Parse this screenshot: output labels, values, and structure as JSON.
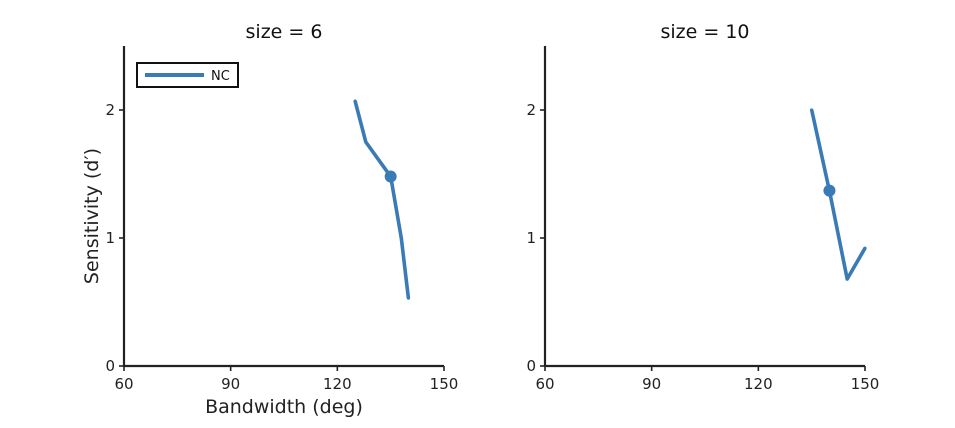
{
  "chart_data": [
    {
      "type": "line",
      "title": "size = 6",
      "xlabel": "Bandwidth (deg)",
      "ylabel": "Sensitivity (d′)",
      "xlim": [
        60,
        150
      ],
      "ylim": [
        0,
        2.5
      ],
      "xticks": [
        "60",
        "90",
        "120",
        "150"
      ],
      "yticks": [
        "0",
        "1",
        "2"
      ],
      "grid": false,
      "legend": {
        "placement": "top-left",
        "entries": [
          "NC"
        ]
      },
      "series": [
        {
          "name": "NC",
          "color": "#3a7ab5",
          "x": [
            125,
            128,
            135,
            138,
            140
          ],
          "y": [
            2.07,
            1.75,
            1.48,
            1.0,
            0.53
          ],
          "marker": {
            "x": 135,
            "y": 1.48
          }
        }
      ]
    },
    {
      "type": "line",
      "title": "size = 10",
      "xlabel": "",
      "ylabel": "",
      "xlim": [
        60,
        150
      ],
      "ylim": [
        0,
        2.5
      ],
      "xticks": [
        "60",
        "90",
        "120",
        "150"
      ],
      "yticks": [
        "0",
        "1",
        "2"
      ],
      "grid": false,
      "legend": null,
      "series": [
        {
          "name": "",
          "color": "#3a7ab5",
          "x": [
            135,
            140,
            145,
            150
          ],
          "y": [
            2.0,
            1.37,
            0.68,
            0.92
          ],
          "marker": {
            "x": 140,
            "y": 1.37
          }
        }
      ]
    }
  ]
}
